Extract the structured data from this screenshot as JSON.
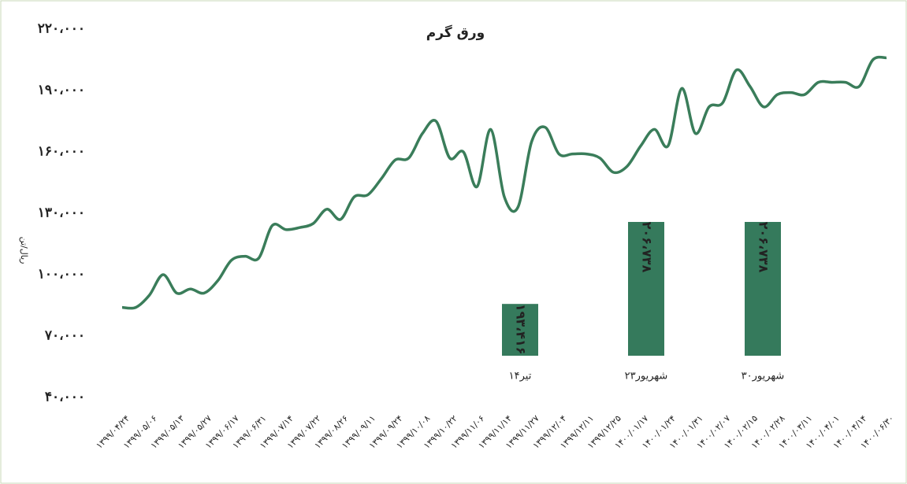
{
  "chart_data": [
    {
      "type": "line",
      "title": "ورق گرم",
      "y_label": "ریال/تن",
      "categories": [
        "۱۳۹۹/۰۴/۲۴",
        null,
        "۱۳۹۹/۰۵/۰۶",
        null,
        "۱۳۹۹/۰۵/۱۳",
        null,
        "۱۳۹۹/۰۵/۲۷",
        null,
        "۱۳۹۹/۰۶/۱۷",
        null,
        "۱۳۹۹/۰۶/۳۱",
        null,
        "۱۳۹۹/۰۷/۱۴",
        null,
        "۱۳۹۹/۰۷/۲۲",
        null,
        "۱۳۹۹/۰۸/۲۶",
        null,
        "۱۳۹۹/۰۹/۱۱",
        null,
        "۱۳۹۹/۰۹/۲۴",
        null,
        "۱۳۹۹/۱۰/۰۸",
        null,
        "۱۳۹۹/۱۰/۲۲",
        null,
        "۱۳۹۹/۱۱/۰۶",
        null,
        "۱۳۹۹/۱۱/۱۴",
        null,
        "۱۳۹۹/۱۱/۲۷",
        null,
        "۱۳۹۹/۱۲/۰۴",
        null,
        "۱۳۹۹/۱۲/۱۱",
        null,
        "۱۳۹۹/۱۲/۲۵",
        null,
        "۱۴۰۰/۰۱/۱۷",
        null,
        "۱۴۰۰/۰۱/۲۴",
        null,
        "۱۴۰۰/۰۱/۳۱",
        null,
        "۱۴۰۰/۰۲/۰۷",
        null,
        "۱۴۰۰/۰۲/۱۵",
        null,
        "۱۴۰۰/۰۲/۲۸",
        null,
        "۱۴۰۰/۰۳/۱۱",
        null,
        "۱۴۰۰/۰۴/۰۱",
        null,
        "۱۴۰۰/۰۴/۱۴",
        null,
        "۱۴۰۰/۰۶/۳۰"
      ],
      "values": [
        84000,
        84000,
        90000,
        100000,
        91000,
        93000,
        91000,
        97000,
        107000,
        109000,
        108000,
        124000,
        122000,
        123000,
        125000,
        132000,
        127000,
        138000,
        139000,
        147000,
        156000,
        157000,
        169000,
        175000,
        157000,
        160000,
        143000,
        171000,
        138000,
        133000,
        165000,
        172000,
        159000,
        159000,
        159000,
        157000,
        150000,
        153000,
        163000,
        171000,
        163000,
        191000,
        169000,
        182000,
        184000,
        200000,
        192000,
        182000,
        188000,
        189000,
        188000,
        194000,
        194000,
        194000,
        192000,
        205000,
        206000
      ],
      "color": "#3a7d5a",
      "ylim": [
        40000,
        220000
      ],
      "yticks": [
        {
          "value": 40000,
          "label": "۴۰،۰۰۰"
        },
        {
          "value": 70000,
          "label": "۷۰،۰۰۰"
        },
        {
          "value": 100000,
          "label": "۱۰۰،۰۰۰"
        },
        {
          "value": 130000,
          "label": "۱۳۰،۰۰۰"
        },
        {
          "value": 160000,
          "label": "۱۶۰،۰۰۰"
        },
        {
          "value": 190000,
          "label": "۱۹۰،۰۰۰"
        },
        {
          "value": 220000,
          "label": "۲۲۰،۰۰۰"
        }
      ]
    },
    {
      "type": "bar",
      "categories": [
        "۱۴تیر",
        "۲۳شهریور",
        "۳۰شهریور"
      ],
      "values": [
        193416,
        206738,
        206738
      ],
      "value_labels": [
        "۱۹۳،۴۱۶",
        "۲۰۶،۷۳۸",
        "۲۰۶،۷۳۸"
      ],
      "color": "#357a5c",
      "ylim": [
        185000,
        210000
      ]
    }
  ]
}
